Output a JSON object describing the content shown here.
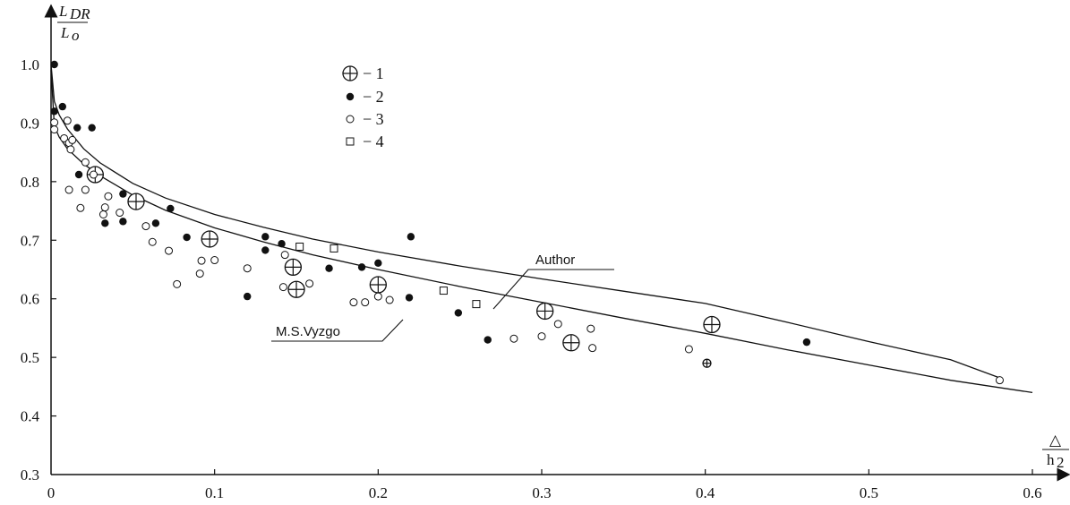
{
  "chart_data": {
    "type": "scatter",
    "title": "",
    "ylabel": {
      "numerator": "L",
      "numerator_sub": "DR",
      "denominator": "L",
      "denominator_sub": "o"
    },
    "xlabel": {
      "numerator": "△",
      "denominator": "h",
      "denominator_sub": "2"
    },
    "xlim": [
      0,
      0.6
    ],
    "ylim": [
      0.3,
      1.0
    ],
    "x_ticks": [
      "0",
      "0.1",
      "0.2",
      "0.3",
      "0.4",
      "0.5",
      "0.6"
    ],
    "y_ticks": [
      "0.3",
      "0.4",
      "0.5",
      "0.6",
      "0.7",
      "0.8",
      "0.9",
      "1.0"
    ],
    "grid": false,
    "legend_position": "top-left",
    "legend": [
      {
        "marker": "circle-cross",
        "label": "− 1"
      },
      {
        "marker": "filled-circle",
        "label": "− 2"
      },
      {
        "marker": "open-circle",
        "label": "− 3"
      },
      {
        "marker": "open-square",
        "label": "− 4"
      }
    ],
    "series": [
      {
        "marker": "circle-cross",
        "points": [
          [
            0.027,
            0.812
          ],
          [
            0.052,
            0.766
          ],
          [
            0.097,
            0.702
          ],
          [
            0.148,
            0.654
          ],
          [
            0.15,
            0.616
          ],
          [
            0.2,
            0.624
          ],
          [
            0.302,
            0.579
          ],
          [
            0.318,
            0.525
          ],
          [
            0.404,
            0.556
          ],
          [
            0.401,
            0.49
          ]
        ]
      },
      {
        "marker": "filled-circle",
        "points": [
          [
            0.002,
            1.0
          ],
          [
            0.002,
            0.92
          ],
          [
            0.007,
            0.928
          ],
          [
            0.016,
            0.892
          ],
          [
            0.025,
            0.892
          ],
          [
            0.017,
            0.812
          ],
          [
            0.044,
            0.779
          ],
          [
            0.033,
            0.729
          ],
          [
            0.044,
            0.732
          ],
          [
            0.064,
            0.729
          ],
          [
            0.073,
            0.754
          ],
          [
            0.083,
            0.705
          ],
          [
            0.12,
            0.604
          ],
          [
            0.131,
            0.706
          ],
          [
            0.131,
            0.683
          ],
          [
            0.141,
            0.694
          ],
          [
            0.17,
            0.652
          ],
          [
            0.19,
            0.654
          ],
          [
            0.2,
            0.661
          ],
          [
            0.219,
            0.602
          ],
          [
            0.22,
            0.706
          ],
          [
            0.249,
            0.576
          ],
          [
            0.267,
            0.53
          ],
          [
            0.462,
            0.526
          ]
        ]
      },
      {
        "marker": "open-circle",
        "points": [
          [
            0.002,
            0.901
          ],
          [
            0.002,
            0.889
          ],
          [
            0.008,
            0.874
          ],
          [
            0.01,
            0.904
          ],
          [
            0.011,
            0.866
          ],
          [
            0.012,
            0.855
          ],
          [
            0.013,
            0.871
          ],
          [
            0.011,
            0.786
          ],
          [
            0.018,
            0.755
          ],
          [
            0.021,
            0.786
          ],
          [
            0.021,
            0.833
          ],
          [
            0.026,
            0.812
          ],
          [
            0.032,
            0.744
          ],
          [
            0.033,
            0.756
          ],
          [
            0.035,
            0.775
          ],
          [
            0.042,
            0.747
          ],
          [
            0.058,
            0.724
          ],
          [
            0.062,
            0.697
          ],
          [
            0.072,
            0.682
          ],
          [
            0.077,
            0.625
          ],
          [
            0.091,
            0.643
          ],
          [
            0.092,
            0.665
          ],
          [
            0.1,
            0.666
          ],
          [
            0.12,
            0.652
          ],
          [
            0.142,
            0.62
          ],
          [
            0.143,
            0.675
          ],
          [
            0.158,
            0.626
          ],
          [
            0.185,
            0.594
          ],
          [
            0.192,
            0.594
          ],
          [
            0.2,
            0.604
          ],
          [
            0.207,
            0.598
          ],
          [
            0.283,
            0.532
          ],
          [
            0.3,
            0.536
          ],
          [
            0.31,
            0.557
          ],
          [
            0.33,
            0.549
          ],
          [
            0.331,
            0.516
          ],
          [
            0.39,
            0.514
          ],
          [
            0.58,
            0.461
          ]
        ]
      },
      {
        "marker": "open-square",
        "points": [
          [
            0.152,
            0.689
          ],
          [
            0.173,
            0.686
          ],
          [
            0.24,
            0.614
          ],
          [
            0.26,
            0.591
          ]
        ]
      }
    ],
    "curves": [
      {
        "label": "Author",
        "points": [
          [
            0.0,
            1.0
          ],
          [
            0.002,
            0.937
          ],
          [
            0.005,
            0.914
          ],
          [
            0.01,
            0.89
          ],
          [
            0.02,
            0.856
          ],
          [
            0.03,
            0.832
          ],
          [
            0.05,
            0.797
          ],
          [
            0.07,
            0.772
          ],
          [
            0.1,
            0.744
          ],
          [
            0.13,
            0.722
          ],
          [
            0.16,
            0.702
          ],
          [
            0.2,
            0.68
          ],
          [
            0.25,
            0.656
          ],
          [
            0.3,
            0.634
          ],
          [
            0.35,
            0.613
          ],
          [
            0.4,
            0.592
          ],
          [
            0.45,
            0.56
          ],
          [
            0.5,
            0.527
          ],
          [
            0.55,
            0.496
          ],
          [
            0.58,
            0.465
          ]
        ]
      },
      {
        "label": "M.S.Vyzgo",
        "points": [
          [
            0.0,
            0.99
          ],
          [
            0.002,
            0.895
          ],
          [
            0.005,
            0.876
          ],
          [
            0.01,
            0.856
          ],
          [
            0.02,
            0.83
          ],
          [
            0.03,
            0.81
          ],
          [
            0.05,
            0.777
          ],
          [
            0.07,
            0.751
          ],
          [
            0.1,
            0.721
          ],
          [
            0.13,
            0.697
          ],
          [
            0.16,
            0.675
          ],
          [
            0.2,
            0.65
          ],
          [
            0.25,
            0.621
          ],
          [
            0.3,
            0.594
          ],
          [
            0.35,
            0.567
          ],
          [
            0.4,
            0.541
          ],
          [
            0.45,
            0.513
          ],
          [
            0.5,
            0.487
          ],
          [
            0.55,
            0.461
          ],
          [
            0.6,
            0.44
          ]
        ]
      }
    ]
  }
}
